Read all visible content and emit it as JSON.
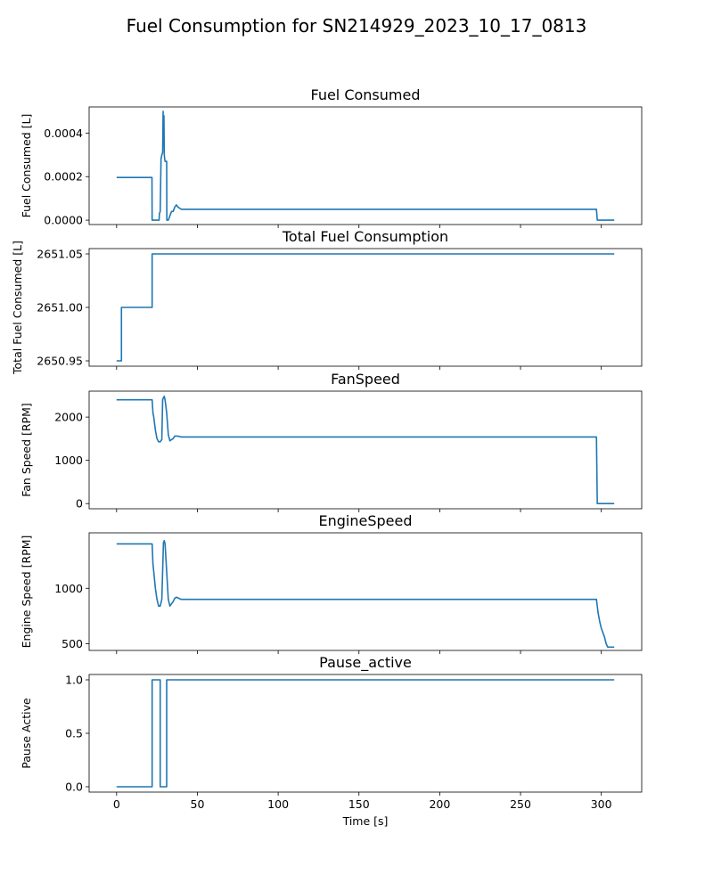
{
  "figure": {
    "title": "Fuel Consumption for SN214929_2023_10_17_0813",
    "line_color": "#1f77b4"
  },
  "chart_data": [
    {
      "type": "line",
      "title": "Fuel Consumed",
      "xlabel": "",
      "ylabel": "Fuel Consumed [L]",
      "xlim": [
        -17,
        325
      ],
      "ylim": [
        -2e-05,
        0.00052
      ],
      "xticks": [
        0,
        50,
        100,
        150,
        200,
        250,
        300
      ],
      "yticks": [
        0.0,
        0.0002,
        0.0004
      ],
      "ytick_labels": [
        "0.0000",
        "0.0002",
        "0.0004"
      ],
      "x": [
        0,
        21.9,
        22,
        26.3,
        26.5,
        27,
        27.5,
        28,
        28.5,
        28.8,
        29,
        29.3,
        29.5,
        29.8,
        30,
        30.5,
        31,
        31.1,
        32,
        33,
        34,
        35,
        36,
        37,
        38,
        40,
        45,
        50,
        100,
        150,
        200,
        250,
        297,
        297.5,
        308
      ],
      "y": [
        0.000196,
        0.000196,
        0.0,
        0.0,
        3e-05,
        4e-05,
        0.00028,
        0.0003,
        0.00031,
        0.0005,
        0.00035,
        0.00048,
        0.0003,
        0.00028,
        0.00027,
        0.00027,
        0.00027,
        0.0,
        0.0,
        2e-05,
        4e-05,
        4e-05,
        6e-05,
        7e-05,
        6e-05,
        5e-05,
        5e-05,
        5e-05,
        5e-05,
        5e-05,
        5e-05,
        5e-05,
        5e-05,
        0.0,
        0.0
      ]
    },
    {
      "type": "line",
      "title": "Total Fuel Consumption",
      "xlabel": "",
      "ylabel": "Total Fuel Consumed [L]",
      "xlim": [
        -17,
        325
      ],
      "ylim": [
        2650.945,
        2651.055
      ],
      "xticks": [
        0,
        50,
        100,
        150,
        200,
        250,
        300
      ],
      "yticks": [
        2650.95,
        2651.0,
        2651.05
      ],
      "ytick_labels": [
        "2650.95",
        "2651.00",
        "2651.05"
      ],
      "x": [
        0,
        3,
        3,
        22,
        22,
        308
      ],
      "y": [
        2650.95,
        2650.95,
        2651.0,
        2651.0,
        2651.05,
        2651.05
      ]
    },
    {
      "type": "line",
      "title": "FanSpeed",
      "xlabel": "",
      "ylabel": "Fan Speed [RPM]",
      "xlim": [
        -17,
        325
      ],
      "ylim": [
        -120,
        2600
      ],
      "xticks": [
        0,
        50,
        100,
        150,
        200,
        250,
        300
      ],
      "yticks": [
        0,
        1000,
        2000
      ],
      "ytick_labels": [
        "0",
        "1000",
        "2000"
      ],
      "x": [
        0,
        22,
        22.5,
        23,
        24,
        25,
        26,
        27,
        28,
        28.5,
        29,
        29.5,
        30,
        31,
        32,
        33,
        34,
        35,
        36,
        38,
        40,
        45,
        50,
        100,
        150,
        200,
        250,
        297,
        297.5,
        308
      ],
      "y": [
        2400,
        2400,
        2100,
        2000,
        1700,
        1500,
        1430,
        1430,
        1480,
        2400,
        2450,
        2480,
        2400,
        2100,
        1600,
        1450,
        1480,
        1500,
        1560,
        1560,
        1540,
        1540,
        1540,
        1540,
        1540,
        1540,
        1540,
        1540,
        0,
        0
      ]
    },
    {
      "type": "line",
      "title": "EngineSpeed",
      "xlabel": "",
      "ylabel": "Engine Speed [RPM]",
      "xlim": [
        -17,
        325
      ],
      "ylim": [
        440,
        1500
      ],
      "xticks": [
        0,
        50,
        100,
        150,
        200,
        250,
        300
      ],
      "yticks": [
        500,
        1000
      ],
      "ytick_labels": [
        "500",
        "1000"
      ],
      "x": [
        0,
        22,
        22.5,
        23,
        24,
        25,
        26,
        27,
        28,
        29,
        29.5,
        30,
        31,
        32,
        33,
        34,
        35,
        36,
        37,
        40,
        50,
        100,
        150,
        200,
        250,
        297,
        298,
        299,
        300,
        301,
        302,
        303,
        304,
        308
      ],
      "y": [
        1400,
        1400,
        1220,
        1150,
        1000,
        900,
        840,
        840,
        900,
        1410,
        1430,
        1400,
        1150,
        900,
        840,
        860,
        880,
        910,
        920,
        900,
        900,
        900,
        900,
        900,
        900,
        900,
        780,
        700,
        640,
        600,
        560,
        500,
        470,
        470
      ]
    },
    {
      "type": "line",
      "title": "Pause_active",
      "xlabel": "Time [s]",
      "ylabel": "Pause Active",
      "xlim": [
        -17,
        325
      ],
      "ylim": [
        -0.05,
        1.05
      ],
      "xticks": [
        0,
        50,
        100,
        150,
        200,
        250,
        300
      ],
      "yticks": [
        0.0,
        0.5,
        1.0
      ],
      "ytick_labels": [
        "0.0",
        "0.5",
        "1.0"
      ],
      "x": [
        0,
        22,
        22,
        27,
        27,
        31,
        31,
        308
      ],
      "y": [
        0,
        0,
        1,
        1,
        0,
        0,
        1,
        1
      ]
    }
  ]
}
